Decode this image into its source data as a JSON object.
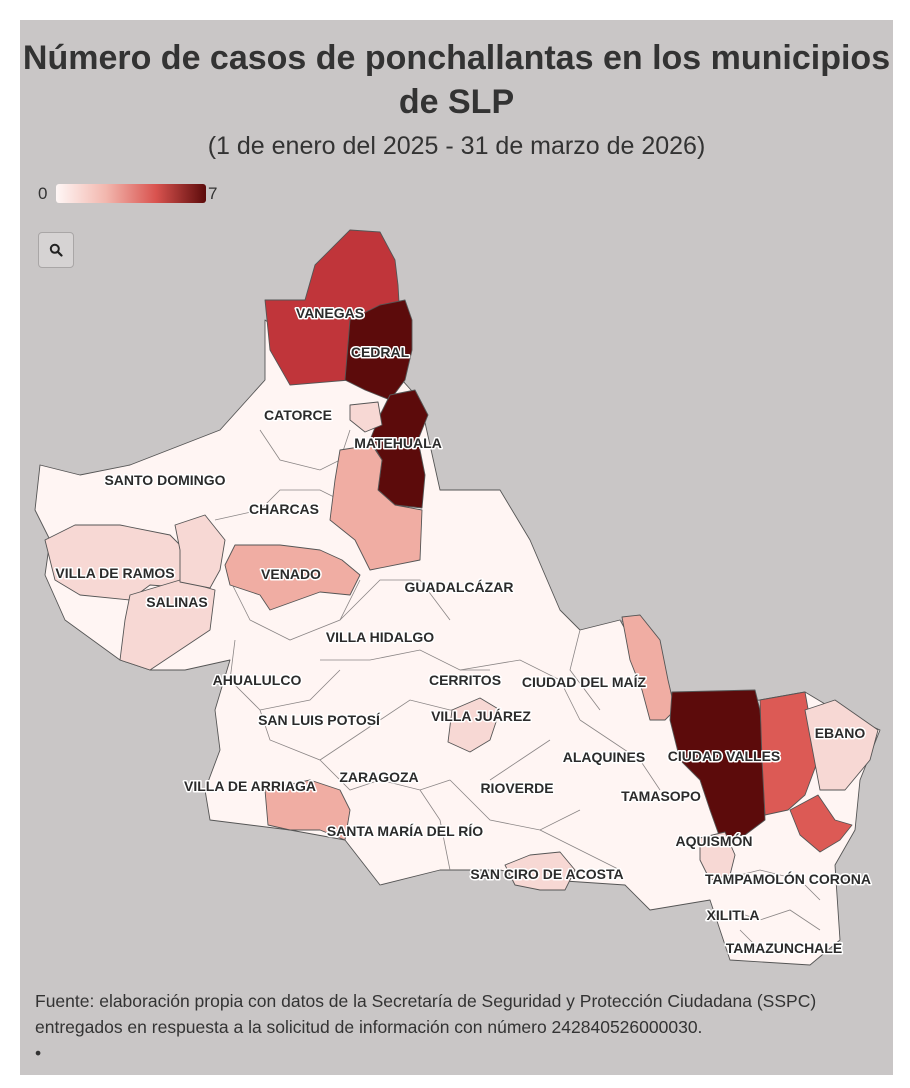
{
  "title": "Número de casos de ponchallantas en los municipios de SLP",
  "subtitle": "(1 de enero del 2025 - 31 de marzo de 2026)",
  "legend": {
    "min_label": "0",
    "max_label": "7",
    "min_color": "#fff7f6",
    "max_color": "#5c0b0b"
  },
  "search_button": {
    "icon": "search-icon"
  },
  "colors": {
    "background": "#c9c6c6",
    "border": "#555555",
    "scale": [
      "#fff5f3",
      "#f7d8d4",
      "#f0ada3",
      "#dc5a55",
      "#c0353a",
      "#5c0b0b"
    ]
  },
  "municipalities": [
    {
      "name": "VANEGAS",
      "value": 5
    },
    {
      "name": "CEDRAL",
      "value": 7
    },
    {
      "name": "CATORCE",
      "value": 0
    },
    {
      "name": "MATEHUALA",
      "value": 7
    },
    {
      "name": "SANTO DOMINGO",
      "value": 0
    },
    {
      "name": "CHARCAS",
      "value": 0
    },
    {
      "name": "VILLA DE RAMOS",
      "value": 1
    },
    {
      "name": "VENADO",
      "value": 2
    },
    {
      "name": "SALINAS",
      "value": 1
    },
    {
      "name": "GUADALCÁZAR",
      "value": 0
    },
    {
      "name": "VILLA HIDALGO",
      "value": 0
    },
    {
      "name": "AHUALULCO",
      "value": 0
    },
    {
      "name": "CERRITOS",
      "value": 0
    },
    {
      "name": "CIUDAD DEL MAÍZ",
      "value": 0
    },
    {
      "name": "SAN LUIS POTOSÍ",
      "value": 0
    },
    {
      "name": "VILLA JUÁREZ",
      "value": 1
    },
    {
      "name": "EBANO",
      "value": 1
    },
    {
      "name": "ALAQUINES",
      "value": 0
    },
    {
      "name": "CIUDAD VALLES",
      "value": 7
    },
    {
      "name": "VILLA DE ARRIAGA",
      "value": 0
    },
    {
      "name": "ZARAGOZA",
      "value": 0
    },
    {
      "name": "RIOVERDE",
      "value": 0
    },
    {
      "name": "TAMASOPO",
      "value": 0
    },
    {
      "name": "SANTA MARÍA DEL RÍO",
      "value": 2
    },
    {
      "name": "AQUISMÓN",
      "value": 1
    },
    {
      "name": "SAN CIRO DE ACOSTA",
      "value": 1
    },
    {
      "name": "TAMPAMOLÓN CORONA",
      "value": 0
    },
    {
      "name": "XILITLA",
      "value": 0
    },
    {
      "name": "TAMAZUNCHALE",
      "value": 0
    }
  ],
  "source_text": "Fuente: elaboración propia con datos de la Secretaría de Seguridad y Protección Ciudadana (SSPC) entregados en respuesta a la solicitud de información con número 242840526000030.",
  "bullet": "•"
}
